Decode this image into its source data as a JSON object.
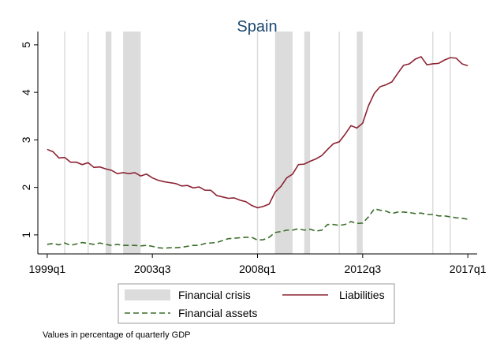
{
  "chart_data": {
    "type": "line",
    "title": "Spain",
    "note": "Values in percentage of quarterly GDP",
    "x": [
      156,
      157,
      158,
      159,
      160,
      161,
      162,
      163,
      164,
      165,
      166,
      167,
      168,
      169,
      170,
      171,
      172,
      173,
      174,
      175,
      176,
      177,
      178,
      179,
      180,
      181,
      182,
      183,
      184,
      185,
      186,
      187,
      188,
      189,
      190,
      191,
      192,
      193,
      194,
      195,
      196,
      197,
      198,
      199,
      200,
      201,
      202,
      203,
      204,
      205,
      206,
      207,
      208,
      209,
      210,
      211,
      212,
      213,
      214,
      215,
      216,
      217,
      218,
      219,
      220,
      221,
      222,
      223,
      224,
      225,
      226,
      227,
      228
    ],
    "series": [
      {
        "name": "Liabilities",
        "color": "#8c2232",
        "dash": false,
        "values": [
          2.8,
          2.75,
          2.62,
          2.63,
          2.53,
          2.53,
          2.48,
          2.52,
          2.42,
          2.43,
          2.39,
          2.36,
          2.29,
          2.31,
          2.29,
          2.31,
          2.24,
          2.28,
          2.2,
          2.15,
          2.12,
          2.1,
          2.08,
          2.03,
          2.04,
          1.99,
          2.01,
          1.94,
          1.94,
          1.83,
          1.8,
          1.77,
          1.78,
          1.73,
          1.7,
          1.62,
          1.57,
          1.6,
          1.65,
          1.9,
          2.02,
          2.2,
          2.28,
          2.48,
          2.49,
          2.55,
          2.6,
          2.67,
          2.8,
          2.92,
          2.96,
          3.12,
          3.3,
          3.25,
          3.35,
          3.72,
          3.98,
          4.12,
          4.16,
          4.22,
          4.4,
          4.57,
          4.6,
          4.7,
          4.75,
          4.58,
          4.6,
          4.61,
          4.68,
          4.73,
          4.72,
          4.6,
          4.56
        ]
      },
      {
        "name": "Financial assets",
        "color": "#3a6e2a",
        "dash": true,
        "values": [
          0.8,
          0.82,
          0.79,
          0.83,
          0.78,
          0.81,
          0.84,
          0.82,
          0.8,
          0.83,
          0.8,
          0.78,
          0.8,
          0.78,
          0.78,
          0.78,
          0.77,
          0.78,
          0.76,
          0.73,
          0.72,
          0.73,
          0.73,
          0.74,
          0.76,
          0.78,
          0.78,
          0.82,
          0.83,
          0.84,
          0.88,
          0.92,
          0.93,
          0.94,
          0.95,
          0.95,
          0.89,
          0.9,
          0.95,
          1.05,
          1.07,
          1.1,
          1.1,
          1.13,
          1.1,
          1.12,
          1.08,
          1.1,
          1.22,
          1.22,
          1.2,
          1.22,
          1.28,
          1.24,
          1.25,
          1.38,
          1.55,
          1.52,
          1.5,
          1.45,
          1.48,
          1.48,
          1.47,
          1.45,
          1.46,
          1.43,
          1.43,
          1.4,
          1.4,
          1.38,
          1.36,
          1.35,
          1.33
        ]
      }
    ],
    "crisis_label": "Financial crisis",
    "crisis_color": "#dcdcdc",
    "crisis_periods": [
      [
        166,
        167
      ],
      [
        169,
        172
      ],
      [
        195,
        198
      ],
      [
        200,
        201
      ],
      [
        209,
        210
      ]
    ],
    "crisis_lines": [
      159,
      163,
      192,
      206,
      222,
      225
    ],
    "xlim": [
      154.4,
      229.6
    ],
    "ylim": [
      0.6,
      5.28
    ],
    "xticks": [
      {
        "value": 156,
        "label": "1999q1"
      },
      {
        "value": 174,
        "label": "2003q3"
      },
      {
        "value": 192,
        "label": "2008q1"
      },
      {
        "value": 210,
        "label": "2012q3"
      },
      {
        "value": 228,
        "label": "2017q1"
      }
    ],
    "yticks": [
      1,
      2,
      3,
      4,
      5
    ],
    "grid": false
  }
}
